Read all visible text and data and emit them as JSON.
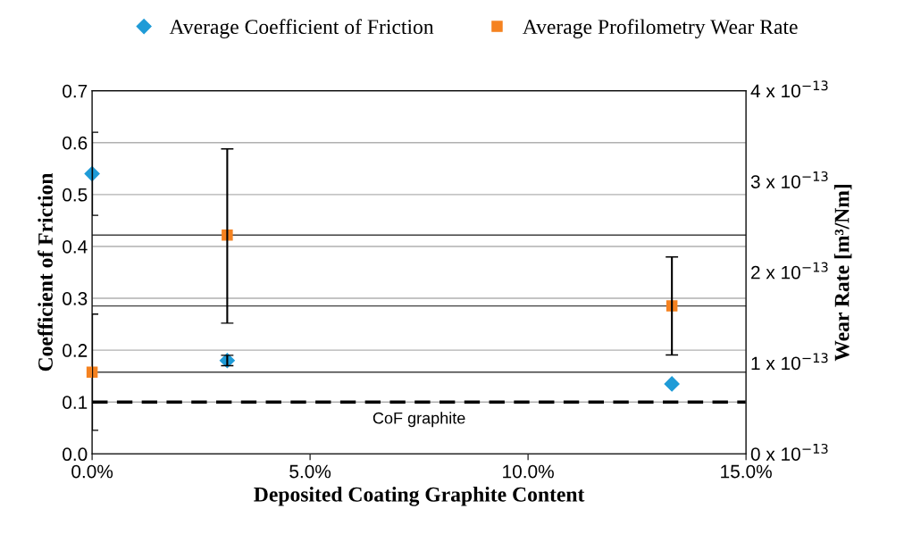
{
  "chart_data": {
    "type": "scatter",
    "xlabel": "Deposited Coating Graphite Content",
    "ylabel": "Coefficient of Friction",
    "y2label": "Wear Rate [m³/Nm]",
    "x": [
      0,
      3.1,
      13.3
    ],
    "series": [
      {
        "name": "Average Coefficient of Friction",
        "color": "#1f9bd7",
        "marker": "diamond",
        "values": [
          0.54,
          0.18,
          0.135
        ],
        "errors": [
          [
            0.46,
            0.62
          ],
          [
            0.17,
            0.19
          ],
          null
        ]
      },
      {
        "name": "Average Profilometry Wear Rate",
        "color": "#f58220",
        "marker": "square",
        "axis": "y2",
        "values": [
          9e-14,
          2.41e-13,
          1.63e-13
        ],
        "errors": [
          [
            2.6e-14,
            1.54e-13
          ],
          [
            1.44e-13,
            3.36e-13
          ],
          [
            1.09e-13,
            2.17e-13
          ]
        ]
      }
    ],
    "xlim": [
      0,
      15
    ],
    "xticks": [
      {
        "value": 0,
        "label": "0.0%"
      },
      {
        "value": 5,
        "label": "5.0%"
      },
      {
        "value": 10,
        "label": "10.0%"
      },
      {
        "value": 15,
        "label": "15.0%"
      }
    ],
    "ylim": [
      0,
      0.7
    ],
    "yticks": [
      {
        "value": 0,
        "label": "0.0"
      },
      0.1,
      0.2,
      0.3,
      0.4,
      0.5,
      0.6,
      0.7
    ],
    "y2lim": [
      0,
      4e-13
    ],
    "y2ticks": [
      {
        "value": 0,
        "label": "0 x 10$^{−13}$"
      },
      {
        "value": 1e-13,
        "label": "1 x 10$^{−13}$"
      },
      {
        "value": 2e-13,
        "label": "2 x 10$^{−13}$"
      },
      {
        "value": 3e-13,
        "label": "3 x 10$^{−13}$"
      },
      {
        "value": 4e-13,
        "label": "4 x 10$^{−13}$"
      }
    ],
    "ref_lines": [
      {
        "axis": "y2",
        "value": 2.41e-13,
        "color": "#404040",
        "line_style": "solid"
      },
      {
        "axis": "y2",
        "value": 1.63e-13,
        "color": "#404040",
        "line_style": "solid"
      },
      {
        "axis": "y2",
        "value": 9e-14,
        "color": "#404040",
        "line_style": "solid"
      },
      {
        "axis": "y",
        "value": 0.1,
        "label": "CoF graphite",
        "color": "#000000",
        "line_style": "dashed"
      }
    ],
    "grid": "y",
    "legend": "top"
  }
}
